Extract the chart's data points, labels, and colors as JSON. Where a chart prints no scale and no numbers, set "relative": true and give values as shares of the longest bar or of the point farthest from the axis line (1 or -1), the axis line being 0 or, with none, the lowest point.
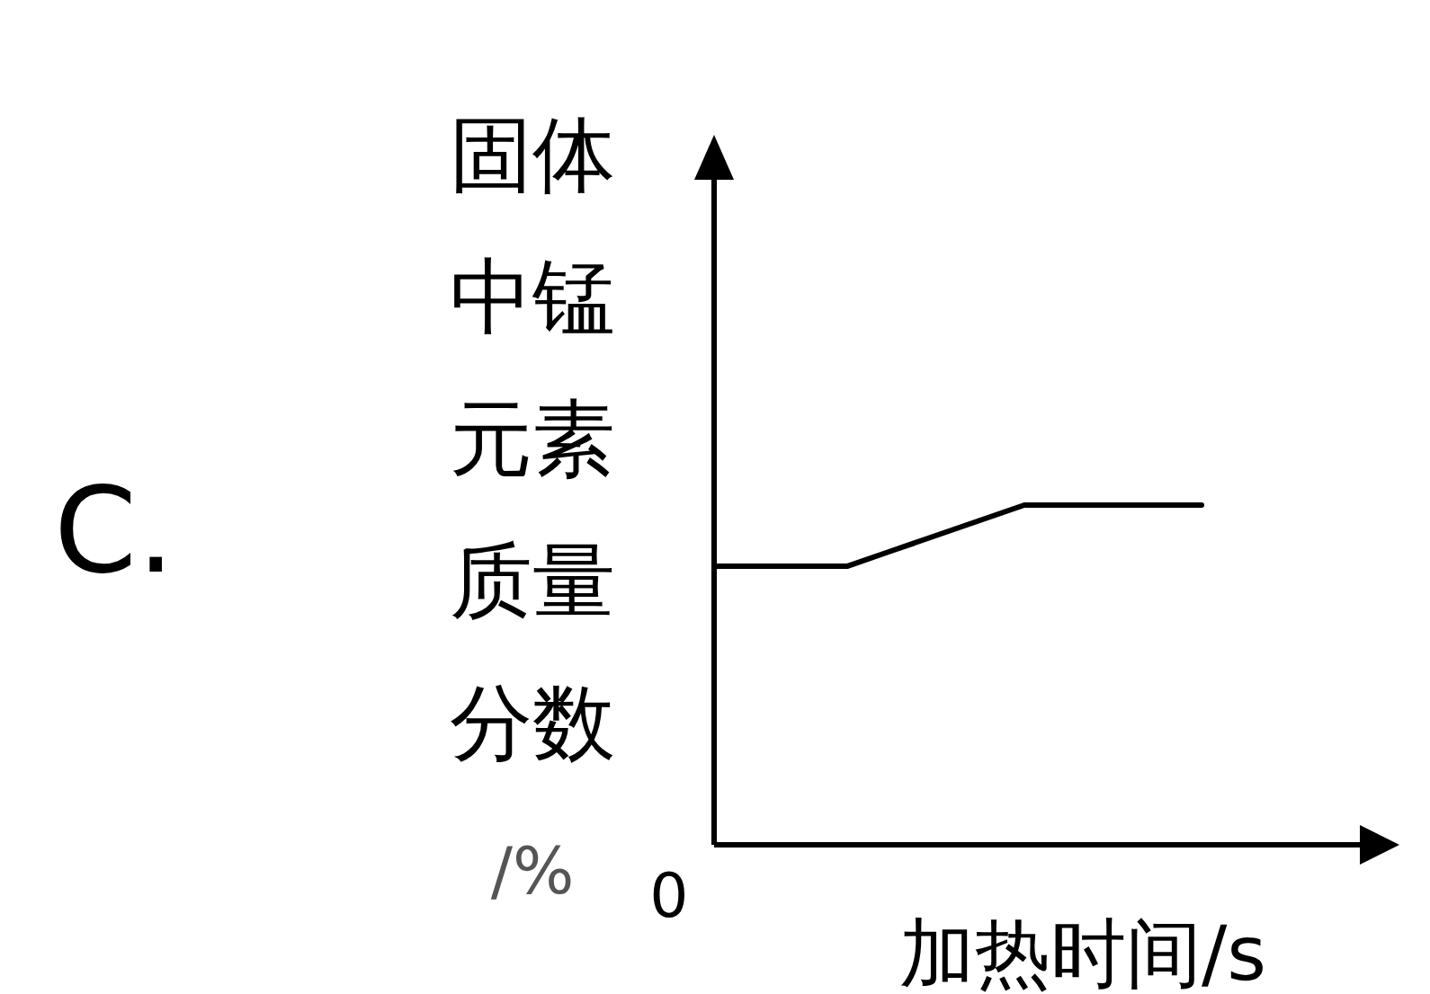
{
  "chart_data": {
    "type": "line",
    "relative": true,
    "ylabel": "固体中锰元素质量分数/%",
    "xlabel": "加热时间/s",
    "annotations": [
      "C.",
      "0"
    ],
    "categories": [
      null,
      null,
      null,
      null,
      null,
      null,
      null,
      null,
      null,
      null,
      null,
      null
    ],
    "series": [
      {
        "color": "#000000",
        "values": [
          0.82,
          0.82,
          0.82,
          0.82,
          0.865,
          0.91,
          0.955,
          1,
          1,
          1,
          1,
          1
        ]
      }
    ]
  }
}
